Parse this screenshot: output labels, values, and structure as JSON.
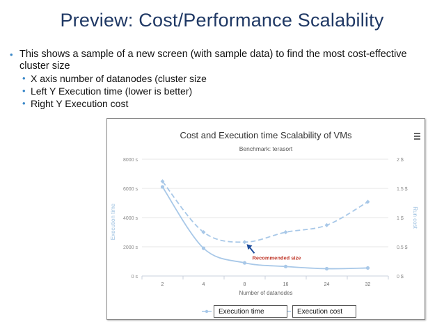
{
  "slide": {
    "title": "Preview: Cost/Performance Scalability",
    "bullet_main": "This shows a sample of a new screen (with sample data) to find the most cost-effective cluster size",
    "sub_bullets": [
      "X axis number of datanodes (cluster size",
      "Left Y Execution time (lower is better)",
      "Right Y Execution cost"
    ]
  },
  "chart_data": {
    "type": "line",
    "title": "Cost and Execution time Scalability of VMs",
    "subtitle": "Benchmark: terasort",
    "xlabel": "Number of datanodes",
    "ylabel": "Execution time",
    "ylabel_right": "Run cost",
    "categories": [
      "2",
      "4",
      "8",
      "16",
      "24",
      "32"
    ],
    "y_ticks": [
      "0 s",
      "2000 s",
      "4000 s",
      "6000 s",
      "8000 s"
    ],
    "y_right_ticks": [
      "0 $",
      "0.5 $",
      "1 $",
      "1.5 $",
      "2 $"
    ],
    "ylim": [
      0,
      8000
    ],
    "ylim_right": [
      0,
      2
    ],
    "series": [
      {
        "name": "Execution time",
        "axis": "left",
        "style": "solid",
        "color": "#a8c8e8",
        "values": [
          6100,
          1900,
          900,
          650,
          500,
          550
        ]
      },
      {
        "name": "Execution cost",
        "axis": "right",
        "style": "dashed",
        "color": "#a8c8e8",
        "values": [
          1.62,
          0.75,
          0.58,
          0.75,
          0.87,
          1.27
        ]
      }
    ],
    "annotation": {
      "text": "Recommended size",
      "color": "#c0392b",
      "arrow_color": "#1f4e9c",
      "category": "8"
    },
    "menu_icon": "hamburger-menu-icon",
    "grid": true,
    "legend_placement": "bottom"
  }
}
